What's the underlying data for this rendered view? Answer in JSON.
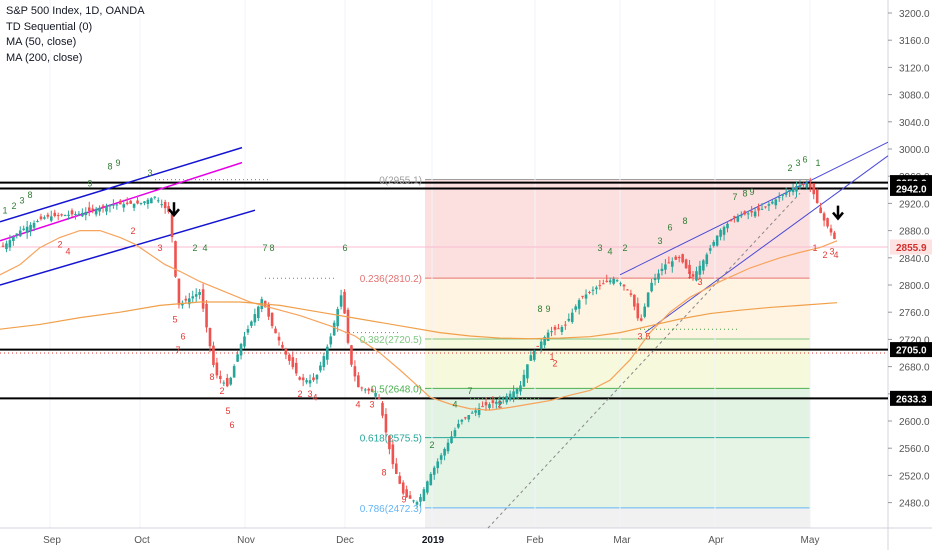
{
  "legend": {
    "title": "S&P 500 Index, 1D, OANDA",
    "indicators": [
      "TD Sequential (0)",
      "MA (50, close)",
      "MA (200, close)"
    ]
  },
  "colors": {
    "up": "#26a69a",
    "down": "#ef5350",
    "ma50": "#f7a35c",
    "ma200": "#f0a04b",
    "channel": "#1414d2",
    "magenta": "#e600e6",
    "wedge": "#4a4ad8",
    "td_buy": "#e53935",
    "td_sell": "#2e7d32"
  },
  "chart_data": {
    "type": "candlestick",
    "y_axis_ticks": [
      "3200.0",
      "3160.0",
      "3120.0",
      "3080.0",
      "3040.0",
      "3000.0",
      "2960.0",
      "2920.0",
      "2880.0",
      "2840.0",
      "2800.0",
      "2760.0",
      "2720.0",
      "2680.0",
      "2640.0",
      "2600.0",
      "2560.0",
      "2520.0",
      "2480.0"
    ],
    "ylim": [
      2460,
      3220
    ],
    "x_axis_labels": [
      "Sep",
      "Oct",
      "Nov",
      "Dec",
      "2019",
      "Feb",
      "Mar",
      "Apr",
      "May"
    ],
    "price_labels": [
      {
        "text": "2950.6",
        "value": 2950.6,
        "style": "dark"
      },
      {
        "text": "2942.0",
        "value": 2942.0,
        "style": "dark"
      },
      {
        "text": "2855.9",
        "value": 2855.9,
        "style": "red"
      },
      {
        "text": "2705.0",
        "value": 2705.0,
        "style": "dark"
      },
      {
        "text": "2633.3",
        "value": 2633.3,
        "style": "dark"
      }
    ],
    "horizontal_levels": [
      2950.6,
      2942.0,
      2705.0,
      2633.3
    ],
    "fibonacci": [
      {
        "label": "0(2955.1)",
        "value": 2955.1
      },
      {
        "label": "0.236(2810.2)",
        "value": 2810.2
      },
      {
        "label": "0.382(2720.5)",
        "value": 2720.5
      },
      {
        "label": "0.5(2648.0)",
        "value": 2648.0
      },
      {
        "label": "0.618(2575.5)",
        "value": 2575.5
      },
      {
        "label": "0.786(2472.3)",
        "value": 2472.3
      }
    ],
    "ma50": [
      [
        0,
        2815
      ],
      [
        20,
        2830
      ],
      [
        40,
        2855
      ],
      [
        60,
        2870
      ],
      [
        80,
        2880
      ],
      [
        100,
        2880
      ],
      [
        120,
        2870
      ],
      [
        135,
        2860
      ],
      [
        150,
        2845
      ],
      [
        165,
        2830
      ],
      [
        180,
        2820
      ],
      [
        200,
        2805
      ],
      [
        225,
        2790
      ],
      [
        250,
        2775
      ],
      [
        275,
        2765
      ],
      [
        300,
        2755
      ],
      [
        330,
        2740
      ],
      [
        355,
        2725
      ],
      [
        380,
        2700
      ],
      [
        400,
        2675
      ],
      [
        415,
        2655
      ],
      [
        430,
        2635
      ],
      [
        450,
        2625
      ],
      [
        470,
        2618
      ],
      [
        490,
        2616
      ],
      [
        510,
        2620
      ],
      [
        530,
        2625
      ],
      [
        550,
        2630
      ],
      [
        570,
        2638
      ],
      [
        590,
        2645
      ],
      [
        610,
        2660
      ],
      [
        630,
        2690
      ],
      [
        650,
        2730
      ],
      [
        670,
        2760
      ],
      [
        690,
        2782
      ],
      [
        720,
        2805
      ],
      [
        750,
        2825
      ],
      [
        780,
        2840
      ],
      [
        800,
        2848
      ],
      [
        820,
        2855
      ],
      [
        837,
        2865
      ]
    ],
    "ma200": [
      [
        0,
        2735
      ],
      [
        40,
        2742
      ],
      [
        80,
        2752
      ],
      [
        120,
        2760
      ],
      [
        160,
        2770
      ],
      [
        200,
        2775
      ],
      [
        240,
        2775
      ],
      [
        280,
        2770
      ],
      [
        320,
        2760
      ],
      [
        360,
        2750
      ],
      [
        400,
        2740
      ],
      [
        440,
        2730
      ],
      [
        470,
        2725
      ],
      [
        500,
        2722
      ],
      [
        530,
        2721
      ],
      [
        560,
        2722
      ],
      [
        590,
        2724
      ],
      [
        620,
        2730
      ],
      [
        650,
        2740
      ],
      [
        680,
        2750
      ],
      [
        710,
        2758
      ],
      [
        740,
        2763
      ],
      [
        770,
        2767
      ],
      [
        800,
        2770
      ],
      [
        837,
        2774
      ]
    ],
    "td_labels_note": "TD Sequential counts 1-9 appear above and below candles"
  }
}
